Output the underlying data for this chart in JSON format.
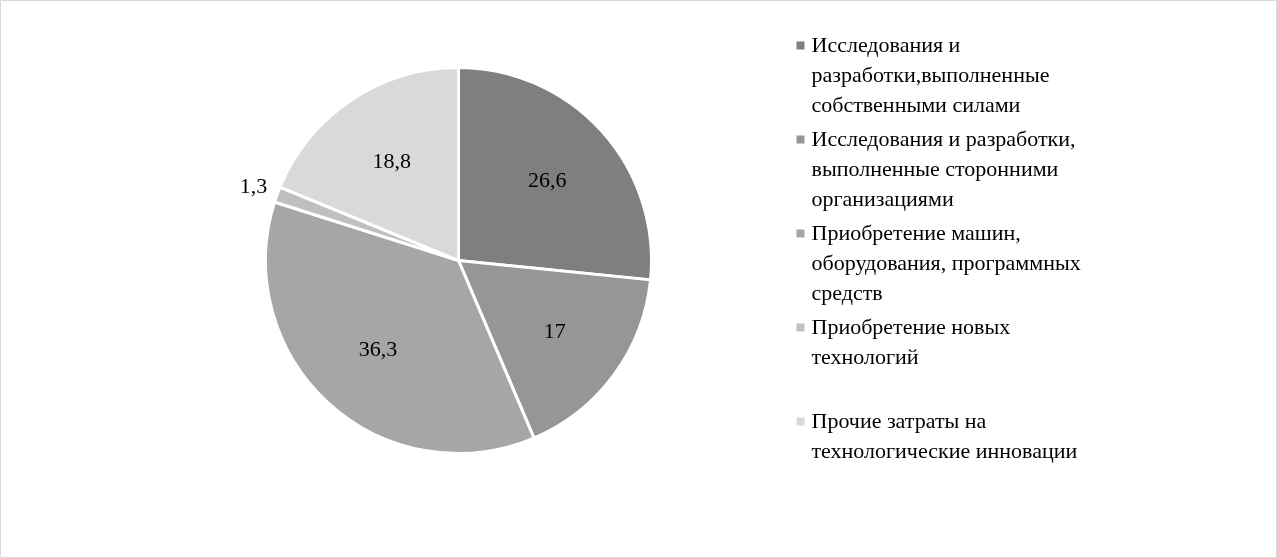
{
  "chart_data": {
    "type": "pie",
    "categories": [
      "Исследования и разработки,выполненные собственными силами",
      "Исследования и разработки, выполненные сторонними организациями",
      "Приобретение машин, оборудования, программных средств",
      "Приобретение новых технологий",
      "Прочие затраты на технологические инновации"
    ],
    "values": [
      26.6,
      17,
      36.3,
      1.3,
      18.8
    ],
    "colors": [
      "#7f7f7f",
      "#969696",
      "#a6a6a6",
      "#bfbfbf",
      "#d9d9d9"
    ],
    "value_labels": [
      "26,6",
      "17",
      "36,3",
      "1,3",
      "18,8"
    ],
    "legend": "right"
  }
}
